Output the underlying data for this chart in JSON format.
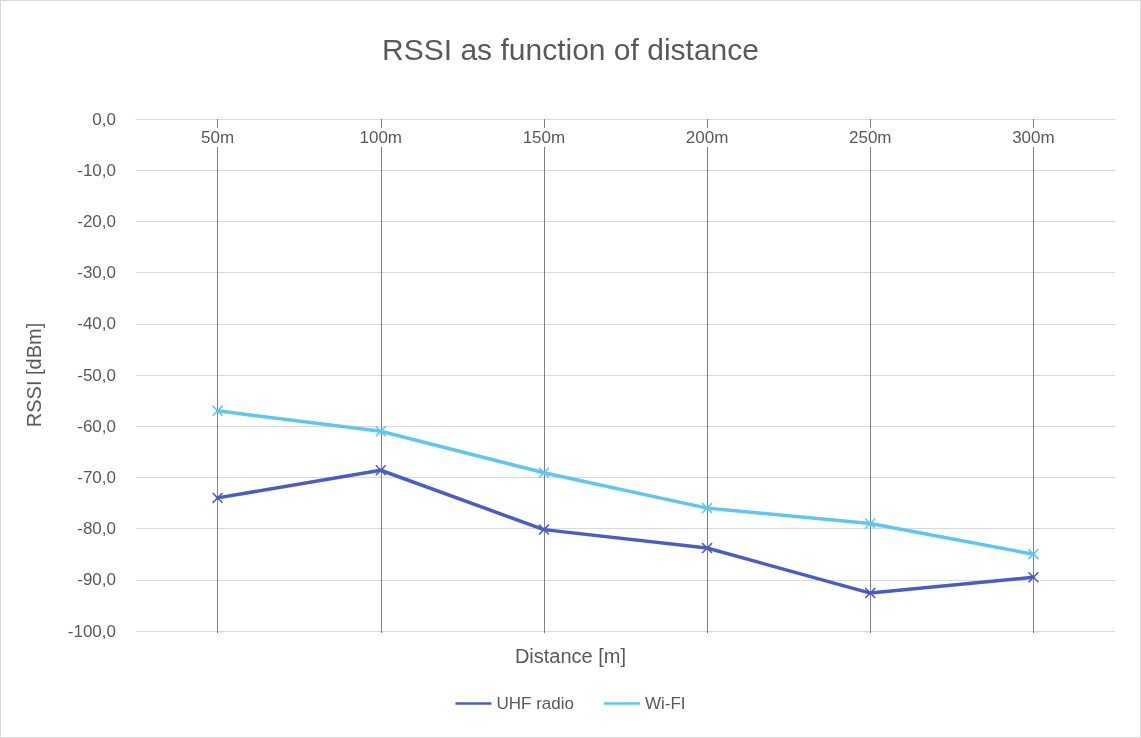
{
  "chart_data": {
    "type": "line",
    "title": "RSSI as function of distance",
    "xlabel": "Distance [m]",
    "ylabel": "RSSI [dBm]",
    "categories": [
      "50m",
      "100m",
      "150m",
      "200m",
      "250m",
      "300m"
    ],
    "series": [
      {
        "name": "UHF radio",
        "color": "#4a5cc6",
        "values": [
          -74,
          -68.6,
          -80.2,
          -83.8,
          -92.6,
          -89.5
        ]
      },
      {
        "name": "Wi-FI",
        "color": "#5cc8f0",
        "values": [
          -57,
          -61,
          -69.1,
          -76,
          -79,
          -85
        ]
      }
    ],
    "ylim": [
      -100,
      0
    ],
    "yticks": [
      {
        "value": -100,
        "label": "-100,0"
      },
      {
        "value": -90,
        "label": "-90,0"
      },
      {
        "value": -80,
        "label": "-80,0"
      },
      {
        "value": -70,
        "label": "-70,0"
      },
      {
        "value": -60,
        "label": "-60,0"
      },
      {
        "value": -50,
        "label": "-50,0"
      },
      {
        "value": -40,
        "label": "-40,0"
      },
      {
        "value": -30,
        "label": "-30,0"
      },
      {
        "value": -20,
        "label": "-20,0"
      },
      {
        "value": -10,
        "label": "-10,0"
      },
      {
        "value": 0,
        "label": "0,0"
      }
    ],
    "grid": true,
    "legend": "bottom",
    "marker": "cross",
    "line_style": "solid"
  }
}
